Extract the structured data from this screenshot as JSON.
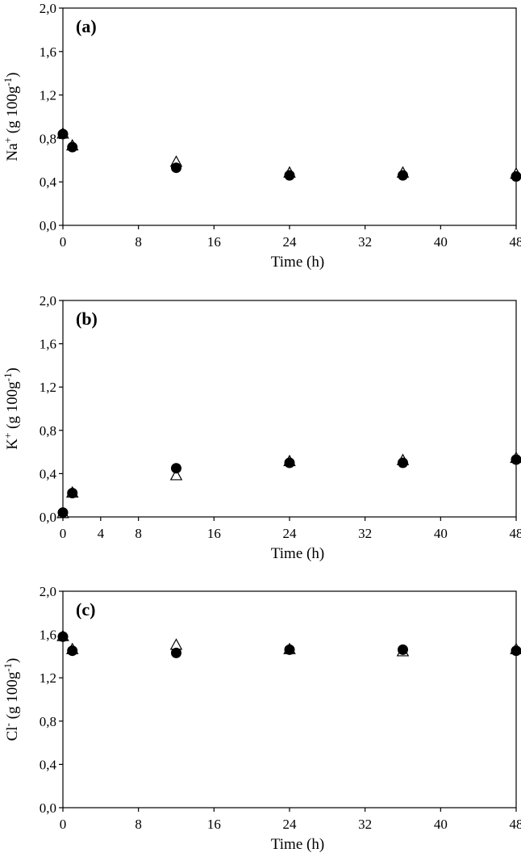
{
  "chart_data": [
    {
      "type": "scatter",
      "panel_label": "(a)",
      "xlabel": "Time (h)",
      "ylabel": {
        "ion": "Na",
        "sup": "+",
        "rest": " (g 100g",
        "exp": "-1",
        "close": ")"
      },
      "xlim": [
        0,
        48
      ],
      "ylim": [
        0,
        2.0
      ],
      "xticks": [
        "0",
        "8",
        "16",
        "24",
        "32",
        "40",
        "48"
      ],
      "yticks": [
        "0,0",
        "0,4",
        "0,8",
        "1,2",
        "1,6",
        "2,0"
      ],
      "grid": false,
      "series": [
        {
          "marker": "open-triangle",
          "x": [
            0,
            1,
            12,
            24,
            36,
            48
          ],
          "y": [
            0.84,
            0.73,
            0.58,
            0.48,
            0.48,
            0.47
          ]
        },
        {
          "marker": "filled-circle",
          "x": [
            0,
            1,
            12,
            24,
            36,
            48
          ],
          "y": [
            0.84,
            0.72,
            0.53,
            0.46,
            0.46,
            0.45
          ]
        }
      ]
    },
    {
      "type": "scatter",
      "panel_label": "(b)",
      "xlabel": "Time (h)",
      "ylabel": {
        "ion": "K",
        "sup": "+",
        "rest": " (g 100g",
        "exp": "-1",
        "close": ")"
      },
      "xlim": [
        0,
        48
      ],
      "ylim": [
        0,
        2.0
      ],
      "xticks": [
        "0",
        "4",
        "8",
        "16",
        "24",
        "32",
        "40",
        "48"
      ],
      "yticks": [
        "0,0",
        "0,4",
        "0,8",
        "1,2",
        "1,6",
        "2,0"
      ],
      "grid": false,
      "series": [
        {
          "marker": "open-triangle",
          "x": [
            0,
            1,
            12,
            24,
            36,
            48
          ],
          "y": [
            0.03,
            0.22,
            0.38,
            0.51,
            0.52,
            0.54
          ]
        },
        {
          "marker": "filled-circle",
          "x": [
            0,
            1,
            12,
            24,
            36,
            48
          ],
          "y": [
            0.04,
            0.22,
            0.45,
            0.5,
            0.5,
            0.53
          ]
        }
      ]
    },
    {
      "type": "scatter",
      "panel_label": "(c)",
      "xlabel": "Time (h)",
      "ylabel": {
        "ion": "Cl",
        "sup": "-",
        "rest": " (g 100g",
        "exp": "-1",
        "close": ")"
      },
      "xlim": [
        0,
        48
      ],
      "ylim": [
        0,
        2.0
      ],
      "xticks": [
        "0",
        "8",
        "16",
        "24",
        "32",
        "40",
        "48"
      ],
      "yticks": [
        "0,0",
        "0,4",
        "0,8",
        "1,2",
        "1,6",
        "2,0"
      ],
      "grid": false,
      "series": [
        {
          "marker": "open-triangle",
          "x": [
            0,
            1,
            12,
            24,
            36,
            48
          ],
          "y": [
            1.58,
            1.46,
            1.5,
            1.46,
            1.44,
            1.46
          ]
        },
        {
          "marker": "filled-circle",
          "x": [
            0,
            1,
            12,
            24,
            36,
            48
          ],
          "y": [
            1.58,
            1.45,
            1.43,
            1.46,
            1.46,
            1.45
          ]
        }
      ]
    }
  ]
}
